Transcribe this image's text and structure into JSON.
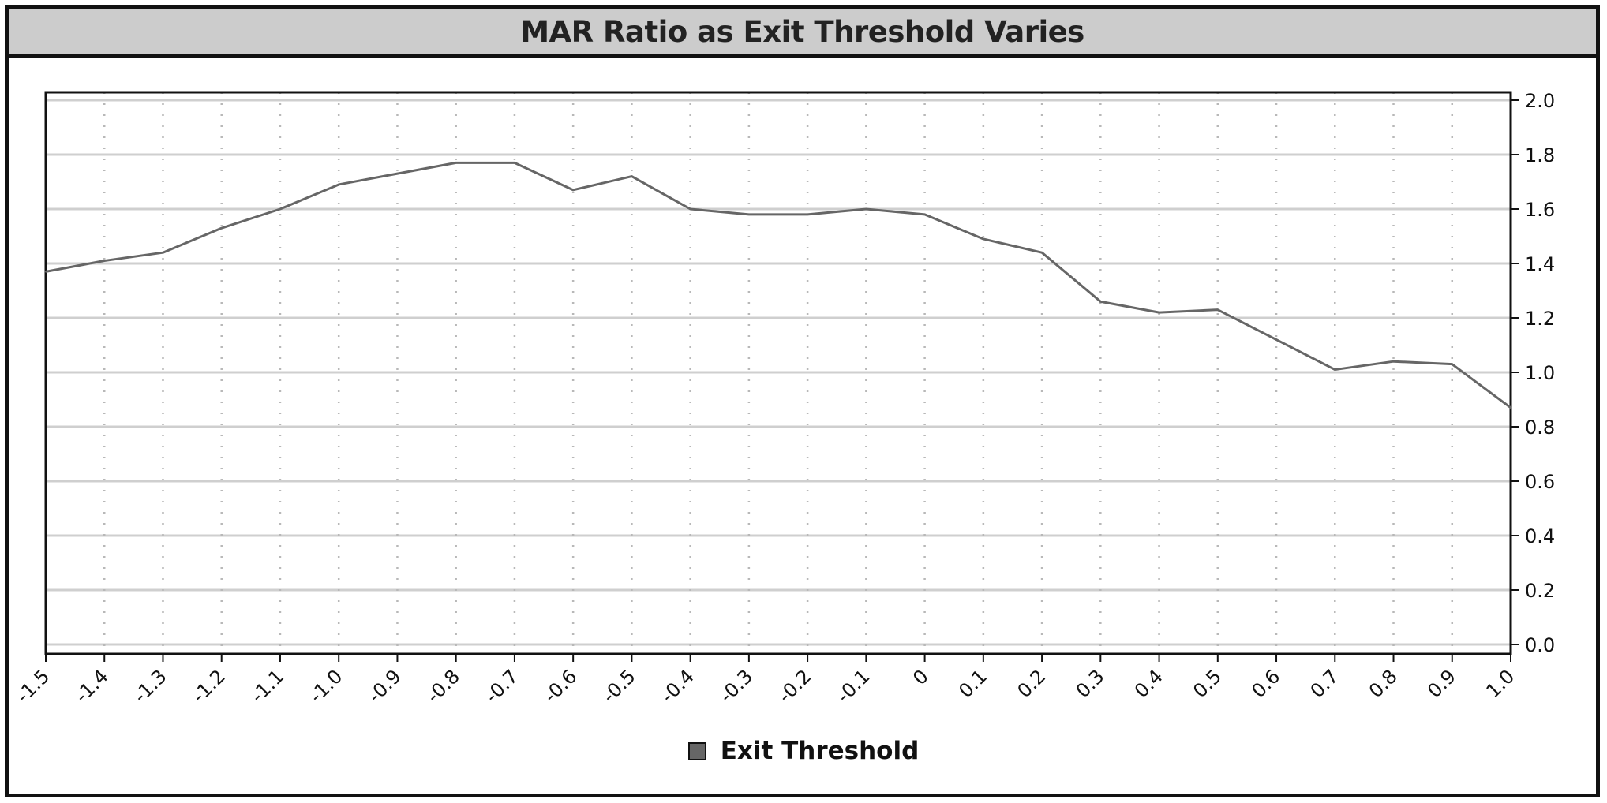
{
  "chart_data": {
    "type": "line",
    "title": "MAR Ratio as Exit Threshold Varies",
    "xlabel": "",
    "ylabel": "",
    "x_tick_labels": [
      "-1.5",
      "-1.4",
      "-1.3",
      "-1.2",
      "-1.1",
      "-1.0",
      "-0.9",
      "-0.8",
      "-0.7",
      "-0.6",
      "-0.5",
      "-0.4",
      "-0.3",
      "-0.2",
      "-0.1",
      "0",
      "0.1",
      "0.2",
      "0.3",
      "0.4",
      "0.5",
      "0.6",
      "0.7",
      "0.8",
      "0.9",
      "1.0"
    ],
    "y_tick_labels": [
      "0.0",
      "0.2",
      "0.4",
      "0.6",
      "0.8",
      "1.0",
      "1.2",
      "1.4",
      "1.6",
      "1.8",
      "2.0"
    ],
    "xlim": [
      -1.5,
      1.0
    ],
    "ylim": [
      0.0,
      2.0
    ],
    "y_axis_side": "right",
    "grid": {
      "horizontal": "solid",
      "vertical": "dotted"
    },
    "legend_position": "bottom-center",
    "series": [
      {
        "name": "Exit Threshold",
        "color": "#666666",
        "x": [
          -1.5,
          -1.4,
          -1.3,
          -1.2,
          -1.1,
          -1.0,
          -0.9,
          -0.8,
          -0.7,
          -0.6,
          -0.5,
          -0.4,
          -0.3,
          -0.2,
          -0.1,
          0,
          0.1,
          0.2,
          0.3,
          0.4,
          0.5,
          0.6,
          0.7,
          0.8,
          0.9,
          1.0
        ],
        "values": [
          1.37,
          1.41,
          1.44,
          1.53,
          1.6,
          1.69,
          1.73,
          1.77,
          1.77,
          1.67,
          1.72,
          1.6,
          1.58,
          1.58,
          1.6,
          1.58,
          1.49,
          1.44,
          1.26,
          1.22,
          1.23,
          1.12,
          1.01,
          1.04,
          1.03,
          0.87
        ]
      }
    ]
  },
  "colors": {
    "title_bar": "#cccccc",
    "grid": "#cfcfcf",
    "axis": "#111111",
    "series_line": "#666666"
  }
}
